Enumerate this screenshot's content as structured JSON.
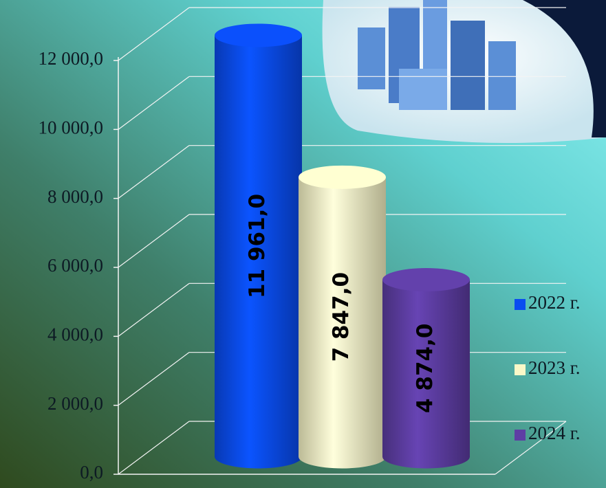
{
  "chart_data": {
    "type": "bar3d",
    "series": [
      {
        "name": "2022 г.",
        "color": "#0a4cf0",
        "values": [
          11961.0
        ],
        "value_labels": [
          "11 961,0"
        ]
      },
      {
        "name": "2023 г.",
        "color": "#fbf8c8",
        "values": [
          7847.0
        ],
        "value_labels": [
          "7 847,0"
        ]
      },
      {
        "name": "2024 г.",
        "color": "#5e3ea4",
        "values": [
          4874.0
        ],
        "value_labels": [
          "4 874,0"
        ]
      }
    ],
    "ylim": [
      0,
      12000
    ],
    "yticks": [
      {
        "value": 0,
        "label": "0,0"
      },
      {
        "value": 2000,
        "label": "2 000,0"
      },
      {
        "value": 4000,
        "label": "4 000,0"
      },
      {
        "value": 6000,
        "label": "6 000,0"
      },
      {
        "value": 8000,
        "label": "8 000,0"
      },
      {
        "value": 10000,
        "label": "10 000,0"
      },
      {
        "value": 12000,
        "label": "12 000,0"
      }
    ],
    "grid": true,
    "legend": "right"
  }
}
